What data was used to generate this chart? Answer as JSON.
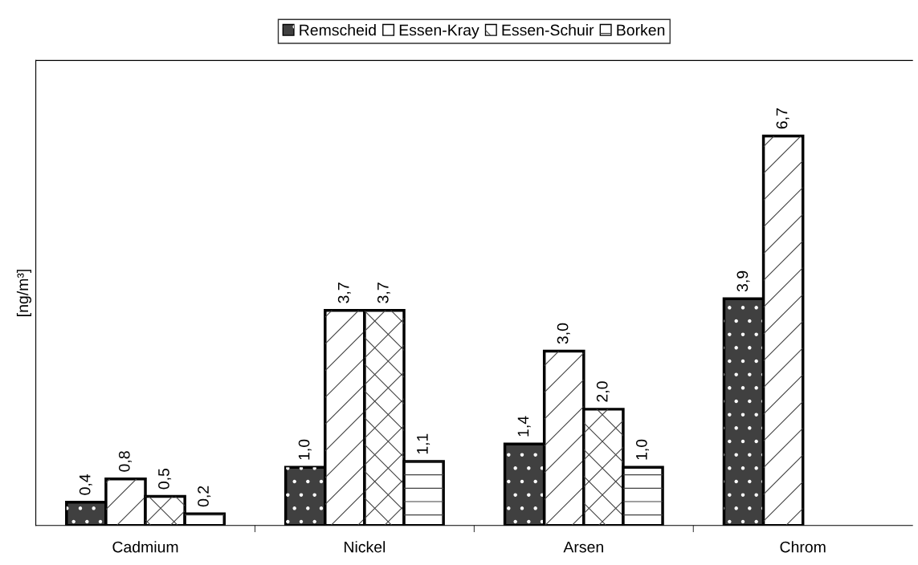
{
  "chart_data": {
    "type": "bar",
    "ylabel": "[ng/m³]",
    "categories": [
      "Cadmium",
      "Nickel",
      "Arsen",
      "Chrom"
    ],
    "series": [
      {
        "name": "Remscheid",
        "color": "#404040",
        "values": [
          0.4,
          1.0,
          1.4,
          3.9
        ],
        "value_labels": [
          "0,4",
          "1,0",
          "1,4",
          "3,9"
        ]
      },
      {
        "name": "Essen-Kray",
        "color": "#ffffff",
        "values": [
          0.8,
          3.7,
          3.0,
          6.7
        ],
        "value_labels": [
          "0,8",
          "3,7",
          "3,0",
          "6,7"
        ]
      },
      {
        "name": "Essen-Schuir",
        "color": "#ffffff",
        "values": [
          0.5,
          3.7,
          2.0,
          null
        ],
        "value_labels": [
          "0,5",
          "3,7",
          "2,0",
          null
        ]
      },
      {
        "name": "Borken",
        "color": "#ffffff",
        "values": [
          0.2,
          1.1,
          1.0,
          null
        ],
        "value_labels": [
          "0,2",
          "1,1",
          "1,0",
          null
        ]
      }
    ],
    "ylim": [
      0,
      8
    ],
    "tick_labels": "x",
    "grid": false,
    "legend": "top"
  }
}
